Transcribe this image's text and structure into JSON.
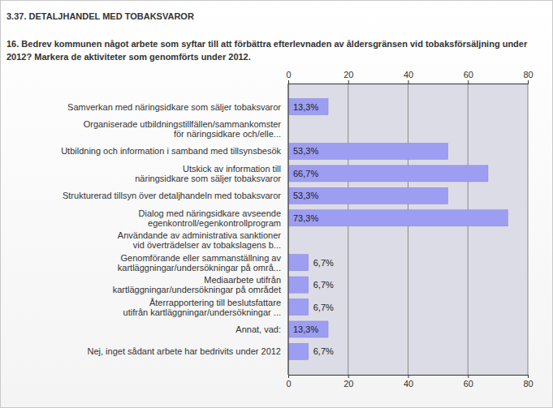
{
  "chart_data": {
    "type": "bar",
    "orientation": "horizontal",
    "title": "3.37. DETALJHANDEL MED TOBAKSVAROR",
    "subtitle": "16. Bedrev kommunen något arbete som syftar till att förbättra efterlevnaden av åldersgränsen vid tobaksförsäljning under 2012? Markera de aktiviteter som genomförts under 2012.",
    "categories": [
      "Samverkan med näringsidkare som säljer tobaksvaror",
      "Organiserade utbildningstillfällen/sammankomster\nför näringsidkare och/elle...",
      "Utbildning och information i samband med tillsynsbesök",
      "Utskick av information till\nnäringsidkare som säljer tobaksvaror",
      "Strukturerad tillsyn över detaljhandeln med tobaksvaror",
      "Dialog med näringsidkare avseende\negenkontroll/egenkontrollprogram",
      "Användande av administrativa sanktioner\nvid överträdelser av tobakslagens b...",
      "Genomförande eller sammanställning av\nkartläggningar/undersökningar på områ...",
      "Mediaarbete utifrån\nkartläggningar/undersökningar på området",
      "Återrapportering till beslutsfattare\nutifrån kartläggningar/undersökningar ...",
      "Annat, vad:",
      "Nej, inget sådant arbete har bedrivits under 2012"
    ],
    "values": [
      13.3,
      null,
      53.3,
      66.7,
      53.3,
      73.3,
      null,
      6.7,
      6.7,
      6.7,
      13.3,
      6.7
    ],
    "value_labels": [
      "13,3%",
      null,
      "53,3%",
      "66,7%",
      "53,3%",
      "73,3%",
      null,
      "6,7%",
      "6,7%",
      "6,7%",
      "13,3%",
      "6,7%"
    ],
    "data_labels": true,
    "color": "#9d9df2",
    "xlim": [
      0,
      80
    ],
    "xticks": [
      0,
      20,
      40,
      60,
      80
    ],
    "grid": true
  }
}
